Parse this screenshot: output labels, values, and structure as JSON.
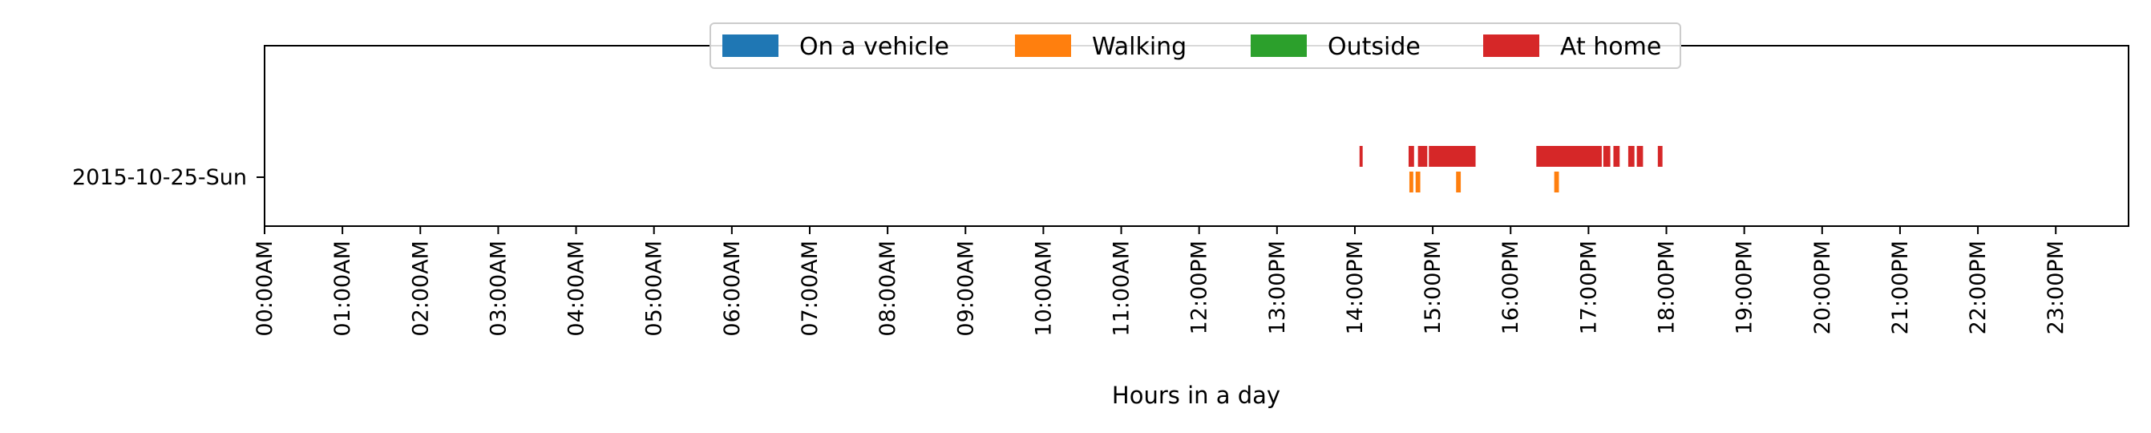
{
  "chart_data": {
    "type": "timeline",
    "xlabel": "Hours in a day",
    "x_unit": "hours",
    "xlim": [
      0,
      24
    ],
    "x_ticks": [
      {
        "value": 0,
        "label": "00:00AM"
      },
      {
        "value": 1,
        "label": "01:00AM"
      },
      {
        "value": 2,
        "label": "02:00AM"
      },
      {
        "value": 3,
        "label": "03:00AM"
      },
      {
        "value": 4,
        "label": "04:00AM"
      },
      {
        "value": 5,
        "label": "05:00AM"
      },
      {
        "value": 6,
        "label": "06:00AM"
      },
      {
        "value": 7,
        "label": "07:00AM"
      },
      {
        "value": 8,
        "label": "08:00AM"
      },
      {
        "value": 9,
        "label": "09:00AM"
      },
      {
        "value": 10,
        "label": "10:00AM"
      },
      {
        "value": 11,
        "label": "11:00AM"
      },
      {
        "value": 12,
        "label": "12:00PM"
      },
      {
        "value": 13,
        "label": "13:00PM"
      },
      {
        "value": 14,
        "label": "14:00PM"
      },
      {
        "value": 15,
        "label": "15:00PM"
      },
      {
        "value": 16,
        "label": "16:00PM"
      },
      {
        "value": 17,
        "label": "17:00PM"
      },
      {
        "value": 18,
        "label": "18:00PM"
      },
      {
        "value": 19,
        "label": "19:00PM"
      },
      {
        "value": 20,
        "label": "20:00PM"
      },
      {
        "value": 21,
        "label": "21:00PM"
      },
      {
        "value": 22,
        "label": "22:00PM"
      },
      {
        "value": 23,
        "label": "23:00PM"
      }
    ],
    "days": [
      "2015-10-25-Sun"
    ],
    "legend": {
      "placement": "upper center"
    },
    "series": [
      {
        "name": "On a vehicle",
        "color": "#1f77b4",
        "intervals": []
      },
      {
        "name": "Walking",
        "color": "#ff7f0e",
        "intervals": [
          [
            14.7,
            14.75
          ],
          [
            14.78,
            14.84
          ],
          [
            15.3,
            15.36
          ],
          [
            16.56,
            16.62
          ]
        ]
      },
      {
        "name": "Outside",
        "color": "#2ca02c",
        "intervals": []
      },
      {
        "name": "At home",
        "color": "#d62728",
        "intervals": [
          [
            14.06,
            14.1
          ],
          [
            14.69,
            14.76
          ],
          [
            14.81,
            14.93
          ],
          [
            14.95,
            15.55
          ],
          [
            16.33,
            17.17
          ],
          [
            17.19,
            17.28
          ],
          [
            17.32,
            17.4
          ],
          [
            17.51,
            17.59
          ],
          [
            17.62,
            17.7
          ],
          [
            17.89,
            17.95
          ]
        ]
      }
    ],
    "grid": false
  }
}
